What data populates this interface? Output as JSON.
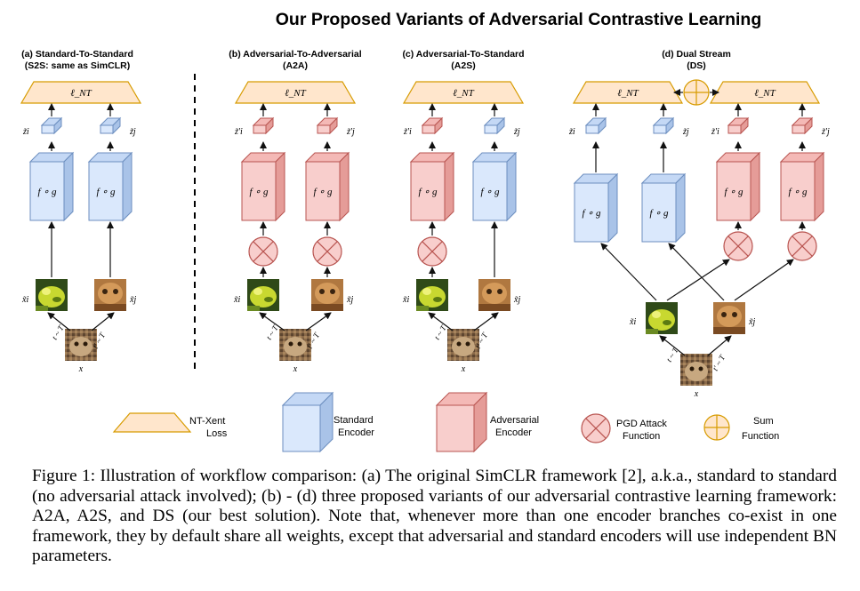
{
  "title": "Our Proposed Variants of Adversarial Contrastive Learning",
  "panels": {
    "a": {
      "line1": "(a) Standard-To-Standard",
      "line2": "(S2S: same as SimCLR)"
    },
    "b": {
      "line1": "(b) Adversarial-To-Adversarial",
      "line2": "(A2A)"
    },
    "c": {
      "line1": "(c) Adversarial-To-Standard",
      "line2": "(A2S)"
    },
    "d": {
      "line1": "(d) Dual Stream",
      "line2": "(DS)"
    }
  },
  "math": {
    "loss": "ℓ_NT",
    "encoder": "f ∘ g",
    "zi": "z̃i",
    "zj": "z̃j",
    "zi_adv": "z̃'i",
    "zj_adv": "z̃'j",
    "xi": "x̃i",
    "xj": "x̃j",
    "x": "x",
    "t": "t ~ T",
    "tp": "t' ~ T"
  },
  "legend": {
    "loss": [
      "NT-Xent",
      "Loss"
    ],
    "standard": [
      "Standard",
      "Encoder"
    ],
    "adversarial": [
      "Adversarial",
      "Encoder"
    ],
    "pgd": [
      "PGD Attack",
      "Function"
    ],
    "sum": [
      "Sum",
      "Function"
    ]
  },
  "colors": {
    "std_fill": "#dae8fc",
    "std_stroke": "#6c8ebf",
    "adv_fill": "#f8cecc",
    "adv_stroke": "#b85450",
    "loss_fill": "#ffe6cc",
    "loss_stroke": "#d79b00"
  },
  "caption": "Figure 1: Illustration of workflow comparison: (a) The original SimCLR framework [2], a.k.a., standard to standard (no adversarial attack involved); (b) - (d) three proposed variants of our adversarial contrastive learning framework: A2A, A2S, and DS (our best solution). Note that, whenever more than one encoder branches co-exist in one framework, they by default share all weights, except that adversarial and standard encoders will use independent BN parameters."
}
